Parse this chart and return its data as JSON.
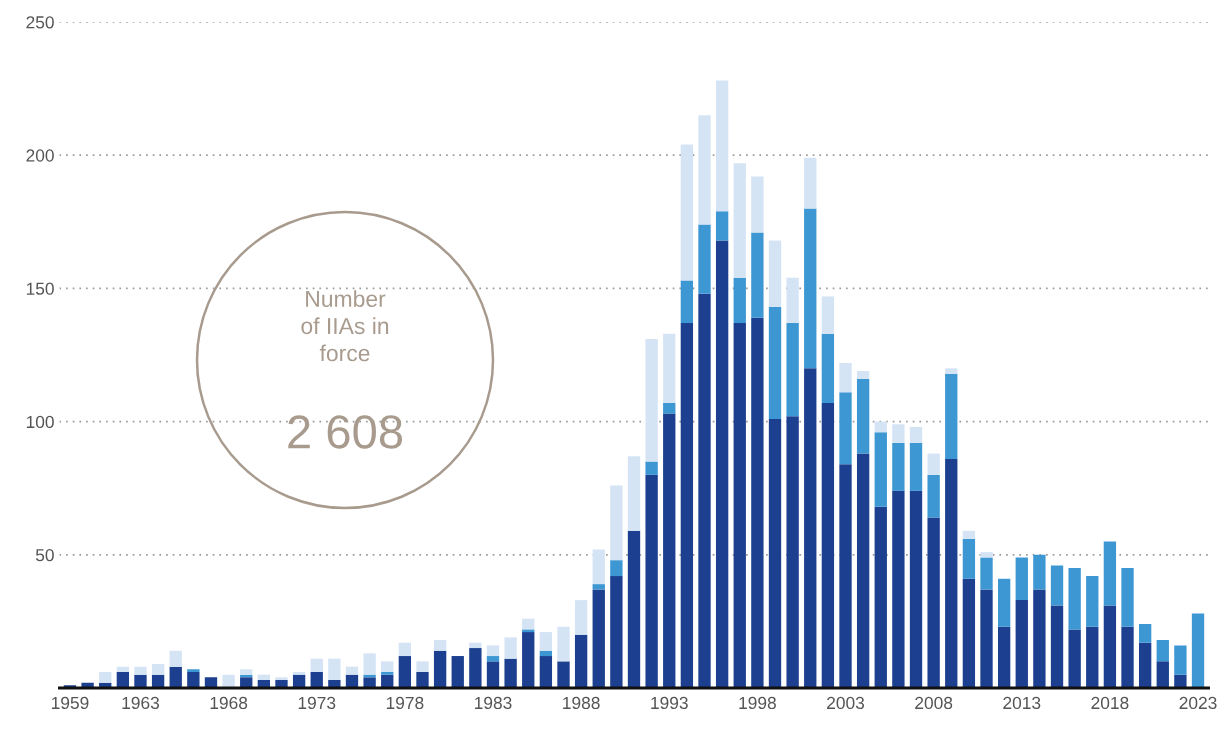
{
  "chart_data": {
    "type": "bar",
    "stacked": true,
    "categories": [
      "1959",
      null,
      null,
      null,
      "1963",
      null,
      null,
      null,
      null,
      "1968",
      null,
      null,
      null,
      null,
      "1973",
      null,
      null,
      null,
      null,
      "1978",
      null,
      null,
      null,
      null,
      "1983",
      null,
      null,
      null,
      null,
      "1988",
      null,
      null,
      null,
      null,
      "1993",
      null,
      null,
      null,
      null,
      "1998",
      null,
      null,
      null,
      null,
      "2003",
      null,
      null,
      null,
      null,
      "2008",
      null,
      null,
      null,
      null,
      "2013",
      null,
      null,
      null,
      null,
      "2018",
      null,
      null,
      null,
      null,
      "2023"
    ],
    "series": [
      {
        "color": "#1c3f8f",
        "values": [
          1,
          2,
          2,
          6,
          5,
          5,
          8,
          6,
          4,
          0,
          4,
          3,
          3,
          5,
          6,
          3,
          5,
          4,
          5,
          12,
          6,
          14,
          12,
          15,
          10,
          11,
          21,
          12,
          10,
          20,
          37,
          42,
          59,
          80,
          103,
          137,
          148,
          168,
          137,
          139,
          101,
          102,
          120,
          107,
          84,
          88,
          68,
          74,
          74,
          64,
          86,
          41,
          37,
          23,
          33,
          37,
          31,
          22,
          23,
          31,
          23,
          17,
          10,
          5,
          0
        ]
      },
      {
        "color": "#3d97d3",
        "values": [
          0,
          0,
          0,
          0,
          0,
          0,
          0,
          1,
          0,
          0,
          1,
          0,
          0,
          0,
          0,
          0,
          0,
          1,
          1,
          0,
          0,
          0,
          0,
          0,
          2,
          0,
          1,
          2,
          0,
          0,
          2,
          6,
          0,
          5,
          4,
          16,
          26,
          11,
          17,
          32,
          42,
          35,
          60,
          26,
          27,
          28,
          28,
          18,
          18,
          16,
          32,
          15,
          12,
          18,
          16,
          13,
          15,
          23,
          19,
          24,
          22,
          7,
          8,
          11,
          28
        ]
      },
      {
        "color": "#d5e4f5",
        "values": [
          0,
          0,
          4,
          2,
          3,
          4,
          6,
          0,
          0,
          5,
          2,
          2,
          1,
          1,
          5,
          8,
          3,
          8,
          4,
          5,
          4,
          4,
          0,
          2,
          4,
          8,
          4,
          7,
          13,
          13,
          13,
          28,
          28,
          46,
          26,
          51,
          41,
          49,
          43,
          21,
          25,
          17,
          19,
          14,
          11,
          3,
          4,
          7,
          6,
          8,
          2,
          3,
          2,
          0,
          0,
          0,
          0,
          0,
          0,
          0,
          0,
          0,
          0,
          0,
          0
        ]
      }
    ],
    "ylim": [
      0,
      250
    ],
    "yticks": [
      50,
      100,
      150,
      200,
      250
    ],
    "grid": "y",
    "annotations": [
      "Number\nof IIAs in\nforce",
      "2 608"
    ]
  }
}
